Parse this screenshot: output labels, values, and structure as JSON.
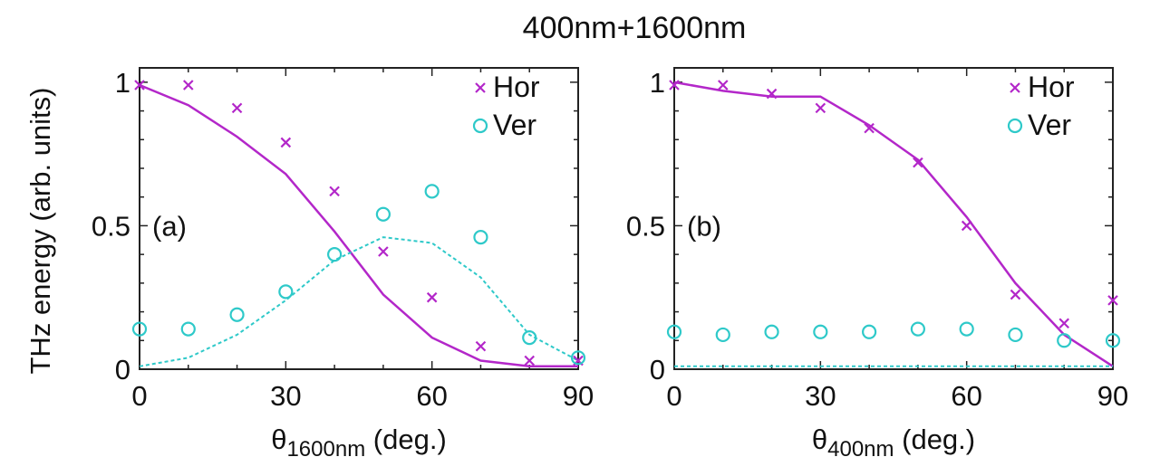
{
  "title": "400nm+1600nm",
  "ylabel": "THz energy (arb. units)",
  "chart_data": [
    {
      "type": "scatter",
      "panel_label": "(a)",
      "xlabel_symbol": "θ",
      "xlabel_subscript": "1600nm",
      "xlabel_unit": "(deg.)",
      "ylabel": "THz energy (arb. units)",
      "xlim": [
        0,
        90
      ],
      "ylim": [
        0,
        1.05
      ],
      "xticks": [
        0,
        30,
        60,
        90
      ],
      "xtick_labels": [
        "0",
        "30",
        "60",
        "90"
      ],
      "yticks": [
        0,
        0.5,
        1
      ],
      "ytick_labels": [
        "0",
        "0.5",
        "1"
      ],
      "legend_position": "top-right",
      "series": [
        {
          "name": "Hor",
          "marker": "x",
          "color": "#b327c9",
          "x": [
            0,
            10,
            20,
            30,
            40,
            50,
            60,
            70,
            80,
            90
          ],
          "y": [
            0.99,
            0.99,
            0.91,
            0.79,
            0.62,
            0.41,
            0.25,
            0.08,
            0.03,
            0.03
          ]
        },
        {
          "name": "Ver",
          "marker": "o",
          "color": "#2ec9c9",
          "x": [
            0,
            10,
            20,
            30,
            40,
            50,
            60,
            70,
            80,
            90
          ],
          "y": [
            0.14,
            0.14,
            0.19,
            0.27,
            0.4,
            0.54,
            0.62,
            0.46,
            0.11,
            0.04
          ]
        }
      ],
      "fits": [
        {
          "name": "Hor fit",
          "style": "solid",
          "color": "#b327c9",
          "x": [
            0,
            10,
            20,
            30,
            40,
            50,
            60,
            70,
            80,
            90
          ],
          "y": [
            0.99,
            0.92,
            0.81,
            0.68,
            0.48,
            0.26,
            0.11,
            0.03,
            0.01,
            0.01
          ]
        },
        {
          "name": "Ver fit",
          "style": "dashed",
          "color": "#2ec9c9",
          "x": [
            0,
            10,
            20,
            30,
            40,
            50,
            60,
            70,
            80,
            90
          ],
          "y": [
            0.01,
            0.04,
            0.12,
            0.24,
            0.38,
            0.46,
            0.44,
            0.32,
            0.12,
            0.03
          ]
        }
      ]
    },
    {
      "type": "scatter",
      "panel_label": "(b)",
      "xlabel_symbol": "θ",
      "xlabel_subscript": "400nm",
      "xlabel_unit": "(deg.)",
      "xlim": [
        0,
        90
      ],
      "ylim": [
        0,
        1.05
      ],
      "xticks": [
        0,
        30,
        60,
        90
      ],
      "xtick_labels": [
        "0",
        "30",
        "60",
        "90"
      ],
      "yticks": [
        0,
        0.5,
        1
      ],
      "ytick_labels": [
        "0",
        "0.5",
        "1"
      ],
      "legend_position": "top-right",
      "series": [
        {
          "name": "Hor",
          "marker": "x",
          "color": "#b327c9",
          "x": [
            0,
            10,
            20,
            30,
            40,
            50,
            60,
            70,
            80,
            90
          ],
          "y": [
            0.99,
            0.99,
            0.96,
            0.91,
            0.84,
            0.72,
            0.5,
            0.26,
            0.16,
            0.24
          ]
        },
        {
          "name": "Ver",
          "marker": "o",
          "color": "#2ec9c9",
          "x": [
            0,
            10,
            20,
            30,
            40,
            50,
            60,
            70,
            80,
            90
          ],
          "y": [
            0.13,
            0.12,
            0.13,
            0.13,
            0.13,
            0.14,
            0.14,
            0.12,
            0.1,
            0.1
          ]
        }
      ],
      "fits": [
        {
          "name": "Hor fit",
          "style": "solid",
          "color": "#b327c9",
          "x": [
            0,
            10,
            20,
            30,
            40,
            50,
            60,
            70,
            80,
            90
          ],
          "y": [
            1.0,
            0.97,
            0.95,
            0.95,
            0.85,
            0.73,
            0.53,
            0.3,
            0.12,
            0.01
          ]
        },
        {
          "name": "Ver fit",
          "style": "dashed",
          "color": "#2ec9c9",
          "x": [
            0,
            90
          ],
          "y": [
            0.01,
            0.01
          ]
        }
      ]
    }
  ]
}
